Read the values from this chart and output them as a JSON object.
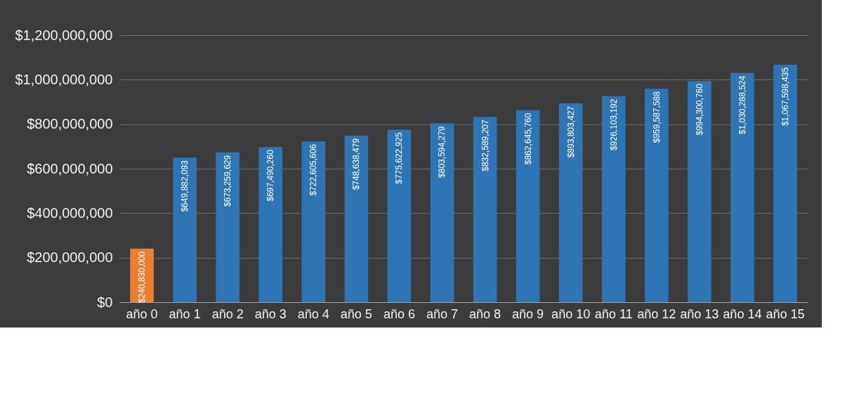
{
  "chart_data": {
    "type": "bar",
    "categories": [
      "año 0",
      "año 1",
      "año 2",
      "año 3",
      "año 4",
      "año 5",
      "año 6",
      "año 7",
      "año 8",
      "año 9",
      "año 10",
      "año 11",
      "año 12",
      "año 13",
      "año 14",
      "año 15"
    ],
    "values": [
      240830000,
      649882093,
      673259629,
      697490260,
      722605606,
      748638479,
      775622925,
      803594279,
      832589207,
      862645760,
      893803427,
      926103192,
      959587588,
      994300760,
      1030288524,
      1067598435
    ],
    "colors": [
      "#ed7d31",
      "#2e75b6",
      "#2e75b6",
      "#2e75b6",
      "#2e75b6",
      "#2e75b6",
      "#2e75b6",
      "#2e75b6",
      "#2e75b6",
      "#2e75b6",
      "#2e75b6",
      "#2e75b6",
      "#2e75b6",
      "#2e75b6",
      "#2e75b6",
      "#2e75b6"
    ],
    "value_labels": [
      "$240,830,000",
      "$649,882,093",
      "$673,259,629",
      "$697,490,260",
      "$722,605,606",
      "$748,638,479",
      "$775,622,925",
      "$803,594,279",
      "$832,589,207",
      "$862,645,760",
      "$893,803,427",
      "$926,103,192",
      "$959,587,588",
      "$994,300,760",
      "$1,030,288,524",
      "$1,067,598,435"
    ],
    "ylim": [
      0,
      1200000000
    ],
    "yticks": [
      {
        "value": 0,
        "label": "$0"
      },
      {
        "value": 200000000,
        "label": "$200,000,000"
      },
      {
        "value": 400000000,
        "label": "$400,000,000"
      },
      {
        "value": 600000000,
        "label": "$600,000,000"
      },
      {
        "value": 800000000,
        "label": "$800,000,000"
      },
      {
        "value": 1000000000,
        "label": "$1,000,000,000"
      },
      {
        "value": 1200000000,
        "label": "$1,200,000,000"
      }
    ],
    "grid": "y"
  }
}
